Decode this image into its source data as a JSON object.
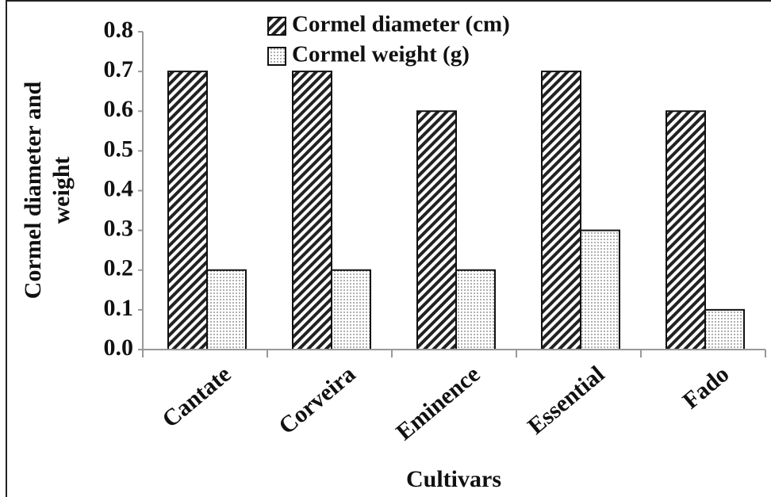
{
  "chart_data": {
    "type": "bar",
    "xlabel": "Cultivars",
    "ylabel": [
      "Cormel diameter and",
      "weight"
    ],
    "categories": [
      "Cantate",
      "Corveira",
      "Eminence",
      "Essential",
      "Fado"
    ],
    "series": [
      {
        "name": "Cormel diameter (cm)",
        "color": "#222222",
        "values": [
          0.7,
          0.7,
          0.6,
          0.7,
          0.6
        ]
      },
      {
        "name": "Cormel weight (g)",
        "color": "#cfcfcf",
        "values": [
          0.2,
          0.2,
          0.2,
          0.3,
          0.1
        ]
      }
    ],
    "ylim": [
      0,
      0.8
    ],
    "yticks": [
      {
        "value": 0,
        "label": "0.0"
      },
      0.1,
      0.2,
      0.3,
      0.4,
      0.5,
      0.6,
      0.7,
      0.8
    ],
    "grid": false,
    "legend": "top"
  }
}
